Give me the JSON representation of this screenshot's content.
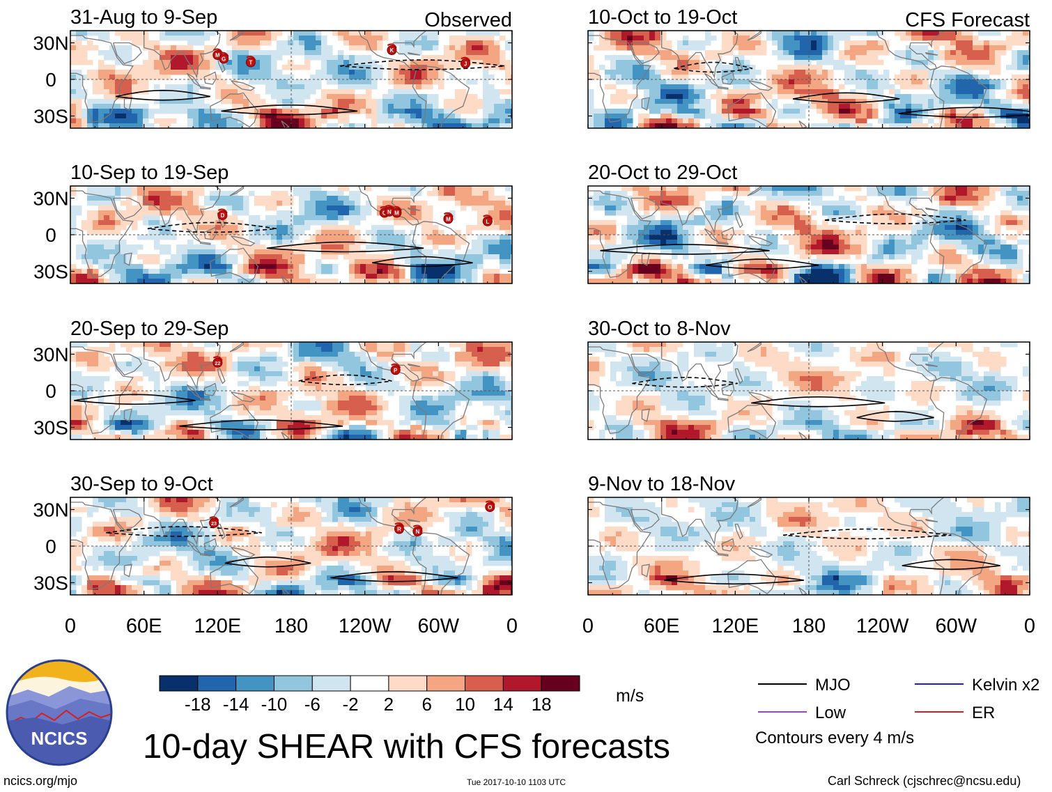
{
  "chart_data": {
    "type": "heatmap",
    "title": "10-day SHEAR with CFS forecasts",
    "column_labels": {
      "left": "Observed",
      "right": "CFS Forecast"
    },
    "y_ticks": [
      "30N",
      "0",
      "30S"
    ],
    "x_ticks": [
      "0",
      "60E",
      "120E",
      "180",
      "120W",
      "60W",
      "0"
    ],
    "panels": [
      {
        "column": "left",
        "row": 1,
        "period": "31-Aug to 9-Sep",
        "storms": [
          {
            "label": "M",
            "lon": 120,
            "lat": 20
          },
          {
            "label": "G",
            "lon": 125,
            "lat": 17
          },
          {
            "label": "T",
            "lon": 147,
            "lat": 14
          },
          {
            "label": "K",
            "lon": 262,
            "lat": 24
          },
          {
            "label": "J",
            "lon": 322,
            "lat": 13
          }
        ]
      },
      {
        "column": "left",
        "row": 2,
        "period": "10-Sep to 19-Sep",
        "storms": [
          {
            "label": "D",
            "lon": 124,
            "lat": 16
          },
          {
            "label": "O",
            "lon": 256,
            "lat": 18
          },
          {
            "label": "N",
            "lon": 260,
            "lat": 19
          },
          {
            "label": "M",
            "lon": 266,
            "lat": 18
          },
          {
            "label": "M",
            "lon": 308,
            "lat": 13
          },
          {
            "label": "L",
            "lon": 340,
            "lat": 11
          }
        ]
      },
      {
        "column": "left",
        "row": 3,
        "period": "20-Sep to 29-Sep",
        "storms": [
          {
            "label": "22",
            "lon": 120,
            "lat": 23
          },
          {
            "label": "P",
            "lon": 265,
            "lat": 17
          }
        ]
      },
      {
        "column": "left",
        "row": 4,
        "period": "30-Sep to 9-Oct",
        "storms": [
          {
            "label": "23",
            "lon": 117,
            "lat": 19
          },
          {
            "label": "O",
            "lon": 342,
            "lat": 32
          },
          {
            "label": "R",
            "lon": 268,
            "lat": 14
          },
          {
            "label": "N",
            "lon": 283,
            "lat": 12
          }
        ]
      },
      {
        "column": "right",
        "row": 1,
        "period": "10-Oct to 19-Oct",
        "storms": []
      },
      {
        "column": "right",
        "row": 2,
        "period": "20-Oct to 29-Oct",
        "storms": []
      },
      {
        "column": "right",
        "row": 3,
        "period": "30-Oct to 8-Nov",
        "storms": []
      },
      {
        "column": "right",
        "row": 4,
        "period": "9-Nov to 18-Nov",
        "storms": []
      }
    ],
    "colorbar": {
      "ticks": [
        "-18",
        "-14",
        "-10",
        "-6",
        "-2",
        "2",
        "6",
        "10",
        "14",
        "18"
      ],
      "units": "m/s",
      "colors": [
        "#08306b",
        "#2166ac",
        "#4393c3",
        "#92c5de",
        "#d1e5f0",
        "#ffffff",
        "#fddbc7",
        "#f4a582",
        "#d6604d",
        "#b2182b",
        "#67001f"
      ]
    },
    "legend": [
      {
        "label": "MJO",
        "color": "#000000"
      },
      {
        "label": "Kelvin x2",
        "color": "#1f1fd6"
      },
      {
        "label": "Low",
        "color": "#a33ed6"
      },
      {
        "label": "ER",
        "color": "#d61f1f"
      }
    ],
    "contour_note": "Contours every 4 m/s"
  },
  "logo": {
    "text": "NCICS",
    "colors": {
      "sky": "#f2b21c",
      "mountains": "#4a5bb0",
      "ring": "#2b3f8f",
      "red_line": "#d62020"
    }
  },
  "footer": {
    "url": "ncics.org/mjo",
    "timestamp": "Tue 2017-10-10 1103 UTC",
    "credit": "Carl Schreck (cjschrec@ncsu.edu)"
  }
}
